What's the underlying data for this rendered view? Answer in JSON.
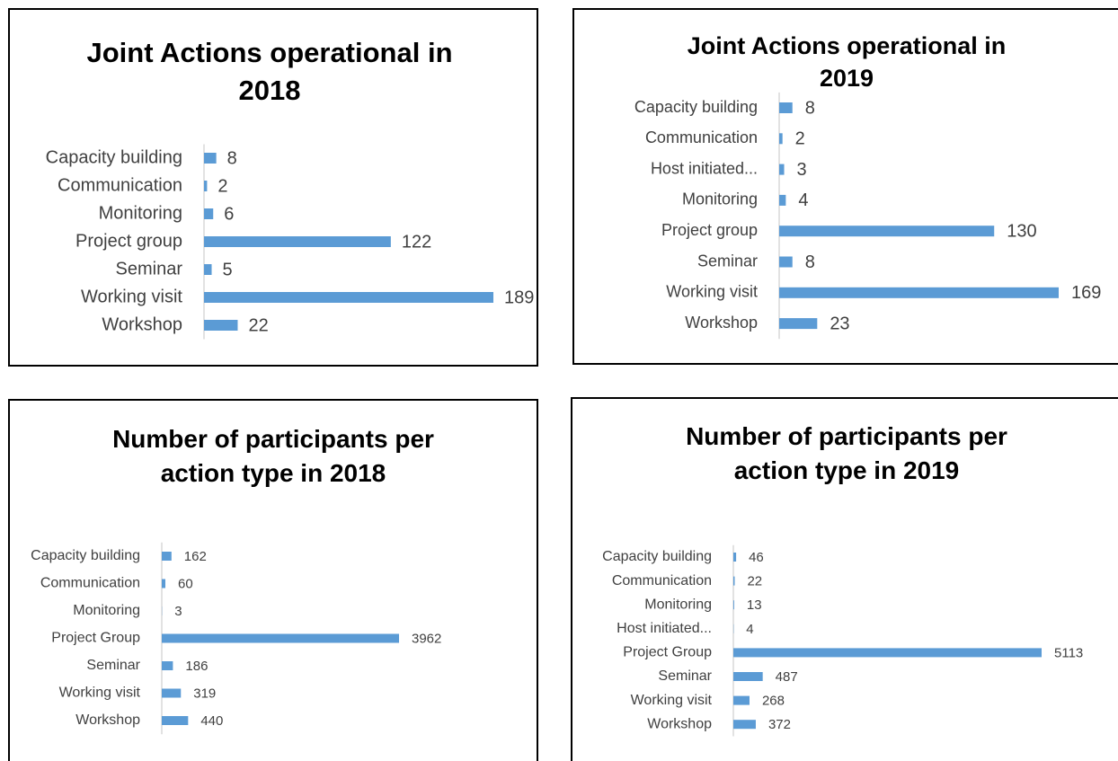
{
  "chart_data": [
    {
      "type": "bar",
      "orientation": "horizontal",
      "title": "Joint Actions operational in 2018",
      "color": "#5b9bd5",
      "categories": [
        "Capacity building",
        "Communication",
        "Monitoring",
        "Project group",
        "Seminar",
        "Working visit",
        "Workshop"
      ],
      "values": [
        8,
        2,
        6,
        122,
        5,
        189,
        22
      ]
    },
    {
      "type": "bar",
      "orientation": "horizontal",
      "title": "Joint Actions operational in 2019",
      "color": "#5b9bd5",
      "categories": [
        "Capacity building",
        "Communication",
        "Host initiated...",
        "Monitoring",
        "Project group",
        "Seminar",
        "Working visit",
        "Workshop"
      ],
      "values": [
        8,
        2,
        3,
        4,
        130,
        8,
        169,
        23
      ]
    },
    {
      "type": "bar",
      "orientation": "horizontal",
      "title": "Number of participants per action type in 2018",
      "color": "#5b9bd5",
      "categories": [
        "Capacity building",
        "Communication",
        "Monitoring",
        "Project Group",
        "Seminar",
        "Working visit",
        "Workshop"
      ],
      "values": [
        162,
        60,
        3,
        3962,
        186,
        319,
        440
      ]
    },
    {
      "type": "bar",
      "orientation": "horizontal",
      "title": "Number of participants per action type in 2019",
      "color": "#5b9bd5",
      "categories": [
        "Capacity building",
        "Communication",
        "Monitoring",
        "Host initiated...",
        "Project Group",
        "Seminar",
        "Working visit",
        "Workshop"
      ],
      "values": [
        46,
        22,
        13,
        4,
        5113,
        487,
        268,
        372
      ]
    }
  ]
}
